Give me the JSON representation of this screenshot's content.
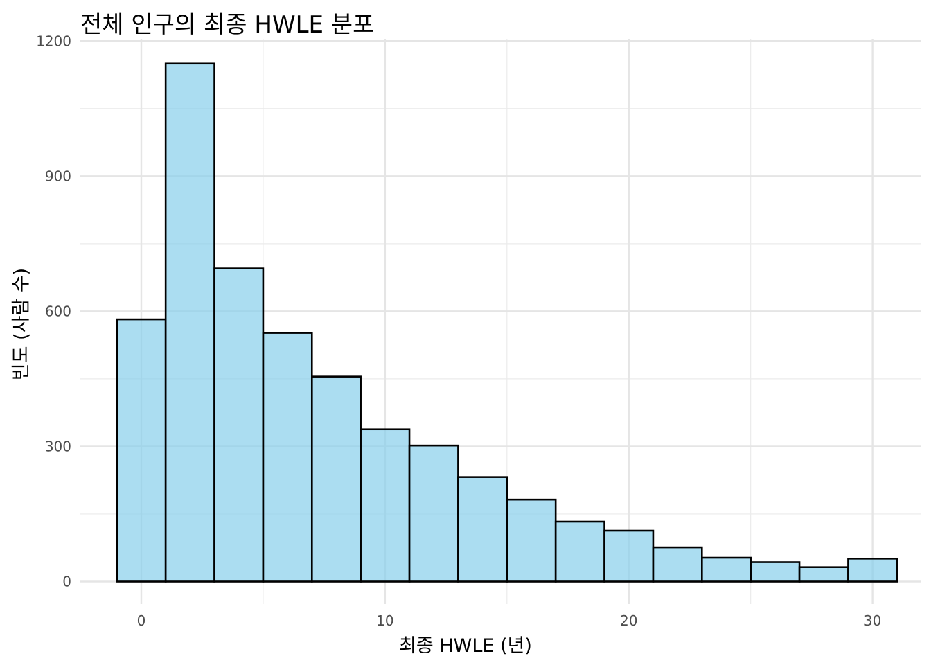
{
  "chart_data": {
    "type": "bar",
    "title": "전체 인구의 최종 HWLE 분포",
    "xlabel": "최종 HWLE (년)",
    "ylabel": "빈도 (사람 수)",
    "bin_width": 2,
    "x": [
      0,
      2,
      4,
      6,
      8,
      10,
      12,
      14,
      16,
      18,
      20,
      22,
      24,
      26,
      28,
      30
    ],
    "values": [
      582,
      1150,
      695,
      552,
      455,
      338,
      302,
      232,
      182,
      133,
      113,
      76,
      53,
      43,
      32,
      51
    ],
    "xlim": [
      -2.5,
      32
    ],
    "ylim": [
      -50,
      1205
    ],
    "xticks": [
      0,
      10,
      20,
      30
    ],
    "yticks": [
      0,
      300,
      600,
      900,
      1200
    ],
    "fill_color": "#87ceeb",
    "edge_color": "#000000",
    "grid": true
  }
}
